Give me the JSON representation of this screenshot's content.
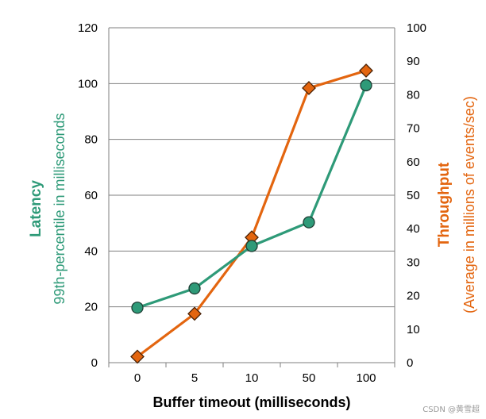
{
  "chart_data": {
    "type": "line",
    "categories": [
      "0",
      "5",
      "10",
      "50",
      "100"
    ],
    "xlabel": "Buffer timeout (milliseconds)",
    "left_axis": {
      "title": "Latency",
      "subtitle": "99th-percentile in milliseconds",
      "ylim": [
        0,
        120
      ],
      "ticks": [
        0,
        20,
        40,
        60,
        80,
        100,
        120
      ],
      "color": "#2e9a78"
    },
    "right_axis": {
      "title": "Throughput",
      "subtitle": "(Average in millions of events/sec)",
      "ylim": [
        0,
        100
      ],
      "ticks": [
        0,
        10,
        20,
        30,
        40,
        50,
        60,
        70,
        80,
        90,
        100
      ],
      "color": "#e3650f"
    },
    "series": [
      {
        "axis": "left",
        "marker": "circle",
        "color": "#2e9a78",
        "values": [
          19.7,
          26.6,
          41.8,
          50.3,
          99.4
        ]
      },
      {
        "axis": "right",
        "marker": "diamond",
        "color": "#e3650f",
        "values": [
          1.8,
          14.6,
          37.4,
          82.0,
          87.2
        ]
      }
    ],
    "grid": true
  },
  "watermark": "CSDN @黄雪超"
}
